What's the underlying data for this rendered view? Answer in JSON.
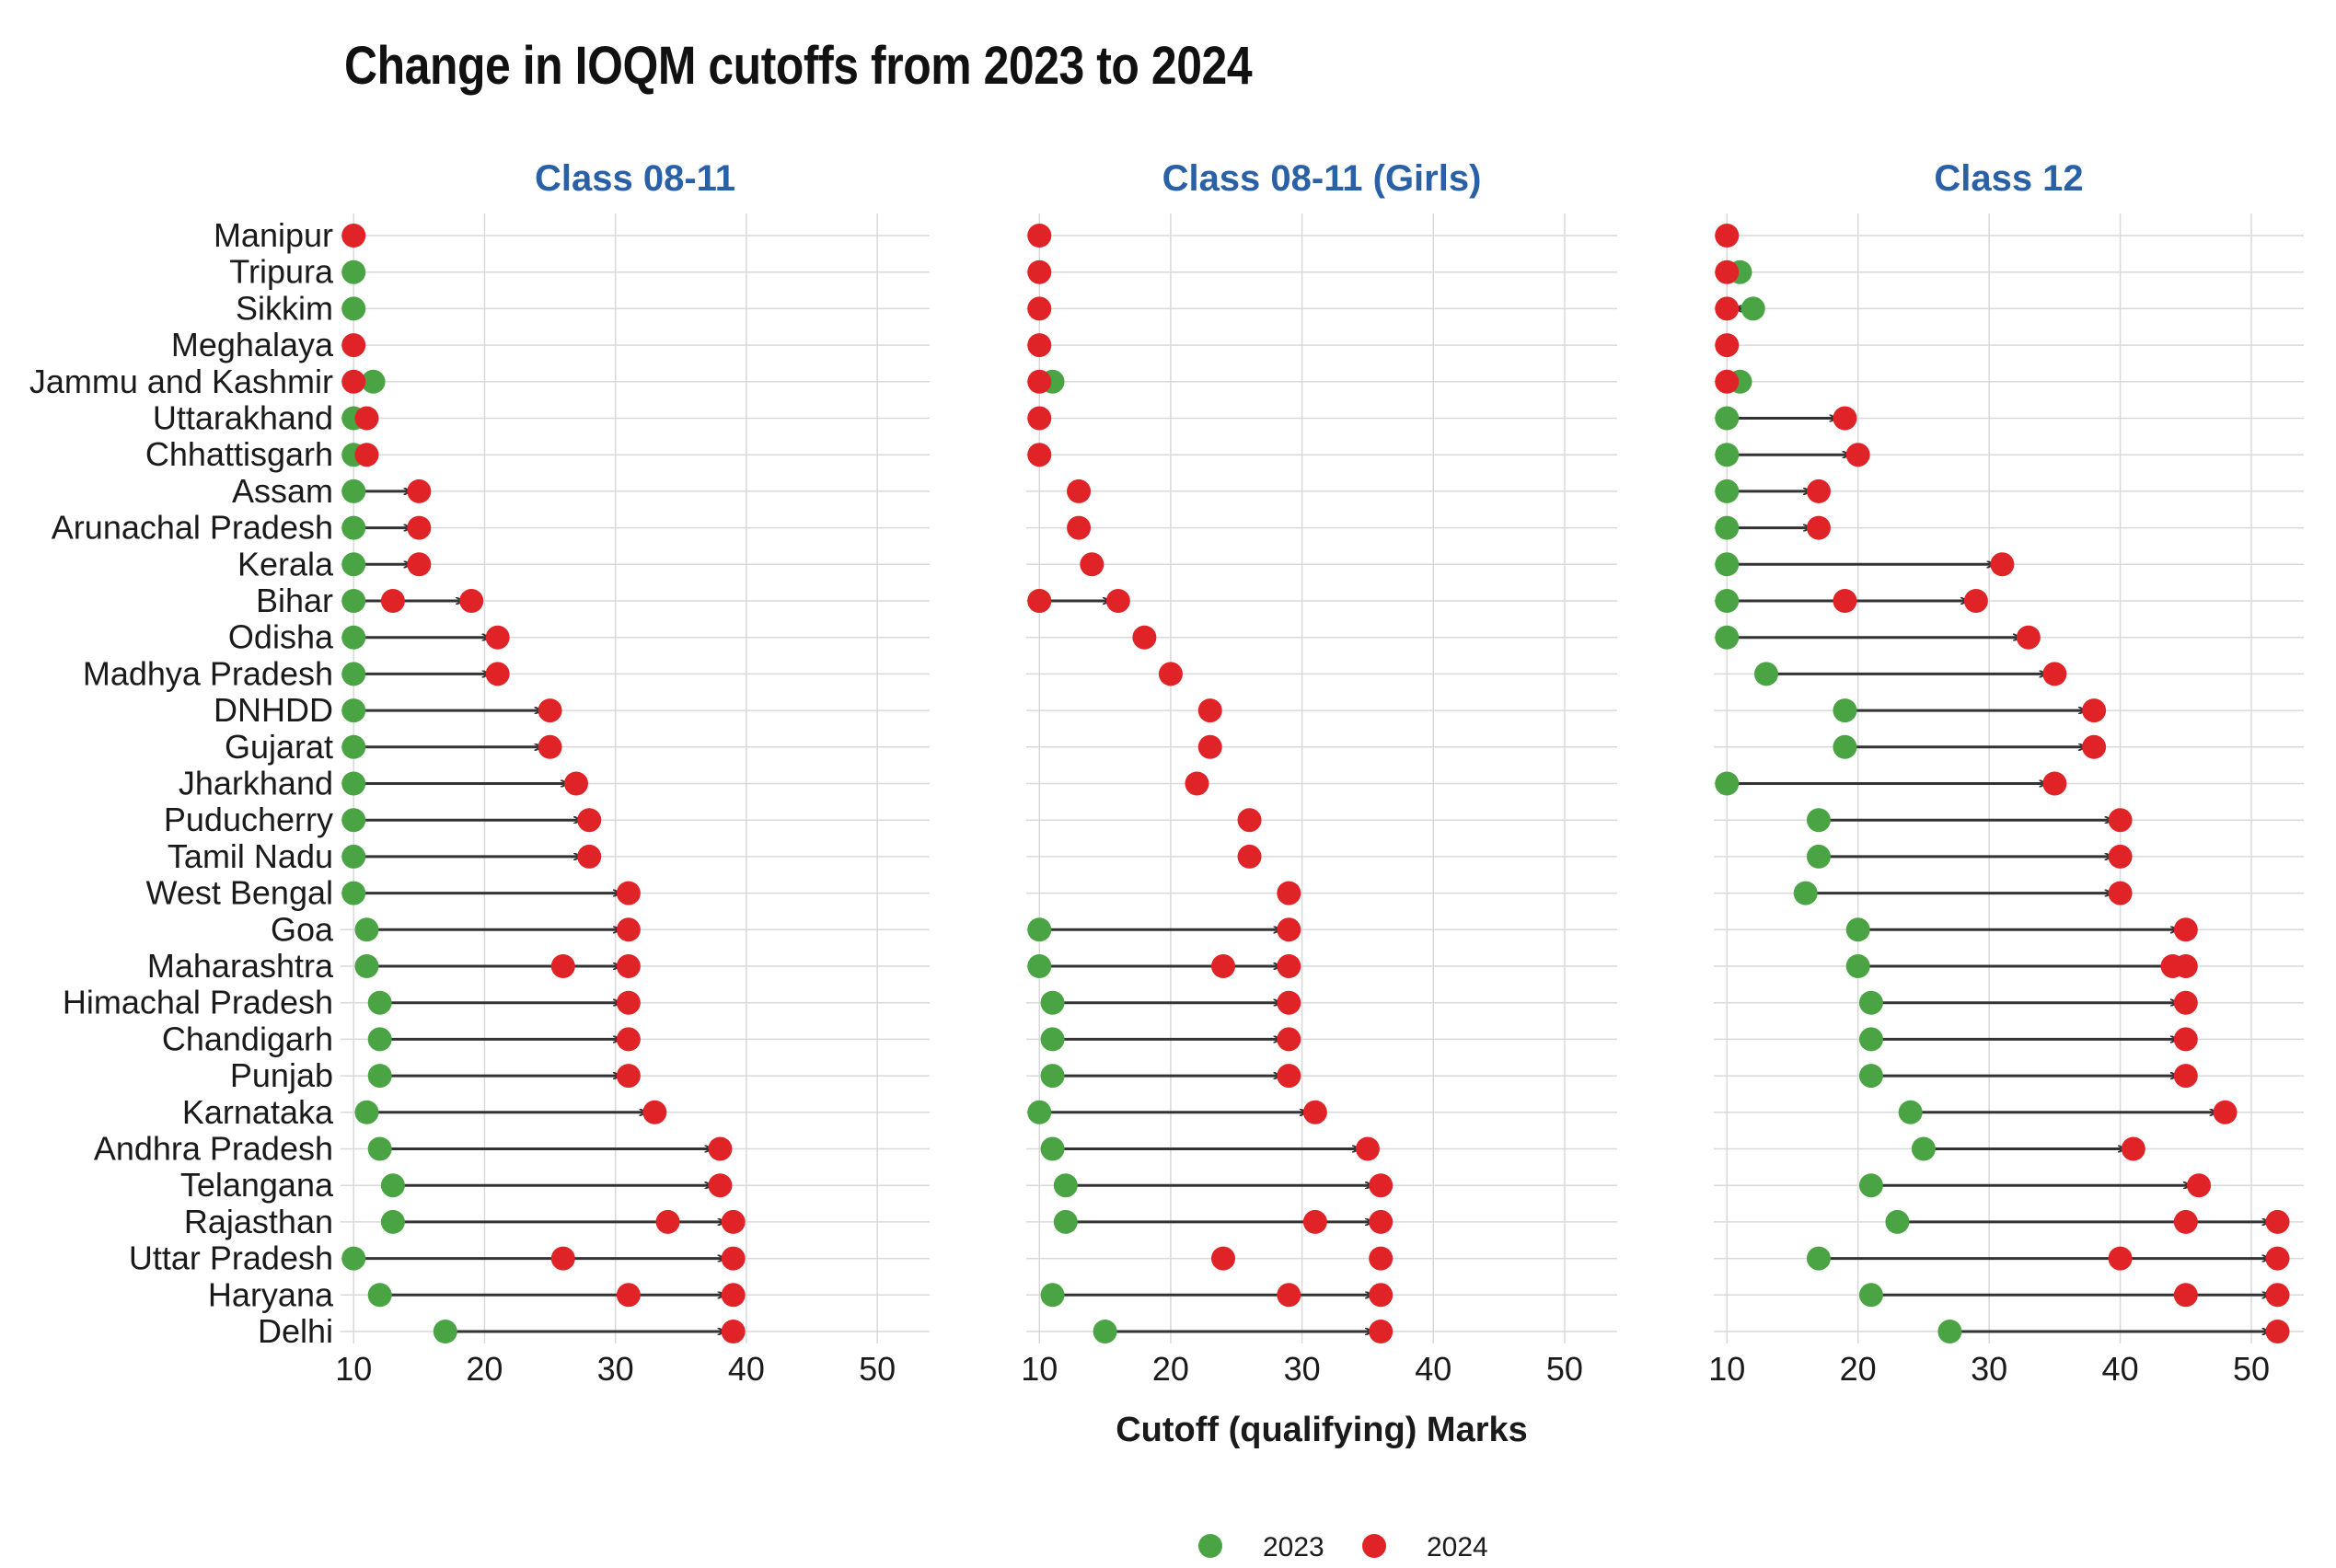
{
  "title": "Change in IOQM cutoffs from 2023 to 2024",
  "colors": {
    "y2023": "#4aa444",
    "y2024": "#e02327",
    "arrow": "#333333",
    "facet_title": "#2a61a6",
    "grid": "#d9d9d9"
  },
  "chart_data": {
    "type": "dumbbell",
    "title": "Change in IOQM cutoffs from 2023 to 2024",
    "xlabel": "Cutoff (qualifying) Marks",
    "ylabel": "",
    "xlim": [
      9,
      54
    ],
    "xticks": [
      10,
      20,
      30,
      40,
      50
    ],
    "grid": true,
    "legend_position": "bottom",
    "legend": [
      {
        "label": "2023",
        "color": "#4aa444"
      },
      {
        "label": "2024",
        "color": "#e02327"
      }
    ],
    "categories": [
      "Manipur",
      "Tripura",
      "Sikkim",
      "Meghalaya",
      "Jammu and Kashmir",
      "Uttarakhand",
      "Chhattisgarh",
      "Assam",
      "Arunachal Pradesh",
      "Kerala",
      "Bihar",
      "Odisha",
      "Madhya Pradesh",
      "DNHDD",
      "Gujarat",
      "Jharkhand",
      "Puducherry",
      "Tamil Nadu",
      "West Bengal",
      "Goa",
      "Maharashtra",
      "Himachal Pradesh",
      "Chandigarh",
      "Punjab",
      "Karnataka",
      "Andhra Pradesh",
      "Telangana",
      "Rajasthan",
      "Uttar Pradesh",
      "Haryana",
      "Delhi"
    ],
    "facets": [
      {
        "title": "Class 08-11",
        "rows": [
          {
            "v2023": [],
            "v2024": [
              10
            ]
          },
          {
            "v2023": [
              10
            ],
            "v2024": []
          },
          {
            "v2023": [
              10
            ],
            "v2024": []
          },
          {
            "v2023": [],
            "v2024": [
              10
            ]
          },
          {
            "v2023": [
              11.5
            ],
            "v2024": [
              10
            ]
          },
          {
            "v2023": [
              10
            ],
            "v2024": [
              11
            ]
          },
          {
            "v2023": [
              10
            ],
            "v2024": [
              11
            ]
          },
          {
            "v2023": [
              10
            ],
            "v2024": [
              15
            ]
          },
          {
            "v2023": [
              10
            ],
            "v2024": [
              15
            ]
          },
          {
            "v2023": [
              10
            ],
            "v2024": [
              15
            ]
          },
          {
            "v2023": [
              10
            ],
            "v2024": [
              13,
              19
            ]
          },
          {
            "v2023": [
              10
            ],
            "v2024": [
              21
            ]
          },
          {
            "v2023": [
              10
            ],
            "v2024": [
              21
            ]
          },
          {
            "v2023": [
              10
            ],
            "v2024": [
              25
            ]
          },
          {
            "v2023": [
              10
            ],
            "v2024": [
              25
            ]
          },
          {
            "v2023": [
              10
            ],
            "v2024": [
              27
            ]
          },
          {
            "v2023": [
              10
            ],
            "v2024": [
              28
            ]
          },
          {
            "v2023": [
              10
            ],
            "v2024": [
              28
            ]
          },
          {
            "v2023": [
              10
            ],
            "v2024": [
              31
            ]
          },
          {
            "v2023": [
              11
            ],
            "v2024": [
              31
            ]
          },
          {
            "v2023": [
              11
            ],
            "v2024": [
              26,
              31
            ]
          },
          {
            "v2023": [
              12
            ],
            "v2024": [
              31
            ]
          },
          {
            "v2023": [
              12
            ],
            "v2024": [
              31
            ]
          },
          {
            "v2023": [
              12
            ],
            "v2024": [
              31
            ]
          },
          {
            "v2023": [
              11
            ],
            "v2024": [
              33
            ]
          },
          {
            "v2023": [
              12
            ],
            "v2024": [
              38
            ]
          },
          {
            "v2023": [
              13
            ],
            "v2024": [
              38
            ]
          },
          {
            "v2023": [
              13
            ],
            "v2024": [
              34,
              39
            ]
          },
          {
            "v2023": [
              10
            ],
            "v2024": [
              26,
              39
            ]
          },
          {
            "v2023": [
              12
            ],
            "v2024": [
              31,
              39
            ]
          },
          {
            "v2023": [
              17
            ],
            "v2024": [
              39
            ]
          }
        ]
      },
      {
        "title": "Class 08-11 (Girls)",
        "rows": [
          {
            "v2023": [],
            "v2024": [
              10
            ]
          },
          {
            "v2023": [],
            "v2024": [
              10
            ]
          },
          {
            "v2023": [],
            "v2024": [
              10
            ]
          },
          {
            "v2023": [],
            "v2024": [
              10
            ]
          },
          {
            "v2023": [
              11
            ],
            "v2024": [
              10
            ]
          },
          {
            "v2023": [],
            "v2024": [
              10
            ]
          },
          {
            "v2023": [],
            "v2024": [
              10
            ]
          },
          {
            "v2023": [],
            "v2024": [
              13
            ]
          },
          {
            "v2023": [],
            "v2024": [
              13
            ]
          },
          {
            "v2023": [],
            "v2024": [
              14
            ]
          },
          {
            "v2023": [
              10
            ],
            "v2024": [
              10,
              16
            ]
          },
          {
            "v2023": [],
            "v2024": [
              18
            ]
          },
          {
            "v2023": [],
            "v2024": [
              20
            ]
          },
          {
            "v2023": [],
            "v2024": [
              23
            ]
          },
          {
            "v2023": [],
            "v2024": [
              23
            ]
          },
          {
            "v2023": [],
            "v2024": [
              22
            ]
          },
          {
            "v2023": [],
            "v2024": [
              26
            ]
          },
          {
            "v2023": [],
            "v2024": [
              26
            ]
          },
          {
            "v2023": [],
            "v2024": [
              29
            ]
          },
          {
            "v2023": [
              10
            ],
            "v2024": [
              29
            ]
          },
          {
            "v2023": [
              10
            ],
            "v2024": [
              24,
              29
            ]
          },
          {
            "v2023": [
              11
            ],
            "v2024": [
              29
            ]
          },
          {
            "v2023": [
              11
            ],
            "v2024": [
              29
            ]
          },
          {
            "v2023": [
              11
            ],
            "v2024": [
              29
            ]
          },
          {
            "v2023": [
              10
            ],
            "v2024": [
              31
            ]
          },
          {
            "v2023": [
              11
            ],
            "v2024": [
              35
            ]
          },
          {
            "v2023": [
              12
            ],
            "v2024": [
              36
            ]
          },
          {
            "v2023": [
              12
            ],
            "v2024": [
              31,
              36
            ]
          },
          {
            "v2023": [],
            "v2024": [
              24,
              36
            ]
          },
          {
            "v2023": [
              11
            ],
            "v2024": [
              29,
              36
            ]
          },
          {
            "v2023": [
              15
            ],
            "v2024": [
              36
            ]
          }
        ]
      },
      {
        "title": "Class 12",
        "rows": [
          {
            "v2023": [],
            "v2024": [
              10
            ]
          },
          {
            "v2023": [
              11
            ],
            "v2024": [
              10
            ]
          },
          {
            "v2023": [
              12
            ],
            "v2024": [
              10
            ]
          },
          {
            "v2023": [],
            "v2024": [
              10
            ]
          },
          {
            "v2023": [
              11
            ],
            "v2024": [
              10
            ]
          },
          {
            "v2023": [
              10
            ],
            "v2024": [
              19
            ]
          },
          {
            "v2023": [
              10
            ],
            "v2024": [
              20
            ]
          },
          {
            "v2023": [
              10
            ],
            "v2024": [
              17
            ]
          },
          {
            "v2023": [
              10
            ],
            "v2024": [
              17
            ]
          },
          {
            "v2023": [
              10
            ],
            "v2024": [
              31
            ]
          },
          {
            "v2023": [
              10
            ],
            "v2024": [
              19,
              29
            ]
          },
          {
            "v2023": [
              10
            ],
            "v2024": [
              33
            ]
          },
          {
            "v2023": [
              13
            ],
            "v2024": [
              35
            ]
          },
          {
            "v2023": [
              19
            ],
            "v2024": [
              38
            ]
          },
          {
            "v2023": [
              19
            ],
            "v2024": [
              38
            ]
          },
          {
            "v2023": [
              10
            ],
            "v2024": [
              35
            ]
          },
          {
            "v2023": [
              17
            ],
            "v2024": [
              40
            ]
          },
          {
            "v2023": [
              17
            ],
            "v2024": [
              40
            ]
          },
          {
            "v2023": [
              16
            ],
            "v2024": [
              40
            ]
          },
          {
            "v2023": [
              20
            ],
            "v2024": [
              45
            ]
          },
          {
            "v2023": [
              20
            ],
            "v2024": [
              44,
              45
            ]
          },
          {
            "v2023": [
              21
            ],
            "v2024": [
              45
            ]
          },
          {
            "v2023": [
              21
            ],
            "v2024": [
              45
            ]
          },
          {
            "v2023": [
              21
            ],
            "v2024": [
              45
            ]
          },
          {
            "v2023": [
              24
            ],
            "v2024": [
              48
            ]
          },
          {
            "v2023": [
              25
            ],
            "v2024": [
              41
            ]
          },
          {
            "v2023": [
              21
            ],
            "v2024": [
              46
            ]
          },
          {
            "v2023": [
              23
            ],
            "v2024": [
              45,
              52
            ]
          },
          {
            "v2023": [
              17
            ],
            "v2024": [
              40,
              52
            ]
          },
          {
            "v2023": [
              21
            ],
            "v2024": [
              45,
              52
            ]
          },
          {
            "v2023": [
              27
            ],
            "v2024": [
              52
            ]
          }
        ]
      }
    ]
  }
}
